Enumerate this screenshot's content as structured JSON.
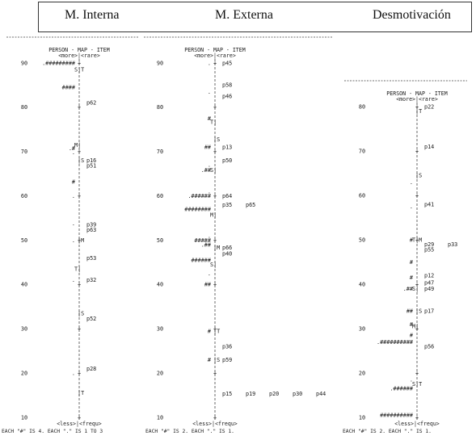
{
  "headers": [
    "M. Interna",
    "M. Externa",
    "Desmotivación"
  ],
  "chart_data": [
    {
      "type": "scatter",
      "title": "M. Interna",
      "map_title": "PERSON - MAP - ITEM",
      "top_label": "<more>|<rare>",
      "bottom_label": "<less>|<frequ>",
      "footer": "EACH \"#\" IS 4. EACH \".\" IS 1 TO 3",
      "ylim": [
        10,
        90
      ],
      "ticks": [
        90,
        80,
        70,
        60,
        50,
        40,
        30,
        20,
        10
      ],
      "axis_markers": [
        {
          "y": 88.5,
          "text": "S|T"
        },
        {
          "y": 71.5,
          "text": "M|"
        },
        {
          "y": 68.0,
          "text": "|S"
        },
        {
          "y": 50.0,
          "text": "|M"
        },
        {
          "y": 43.5,
          "text": "T|"
        },
        {
          "y": 33.5,
          "text": "|S"
        },
        {
          "y": 15.5,
          "text": "|T"
        }
      ],
      "items": [
        {
          "y": 81.0,
          "labels": [
            "p62"
          ]
        },
        {
          "y": 68.0,
          "labels": [
            "p16"
          ]
        },
        {
          "y": 66.8,
          "labels": [
            "p51"
          ]
        },
        {
          "y": 53.5,
          "labels": [
            "p39"
          ]
        },
        {
          "y": 52.3,
          "labels": [
            "p63"
          ]
        },
        {
          "y": 46.0,
          "labels": [
            "p53"
          ]
        },
        {
          "y": 41.0,
          "labels": [
            "p32"
          ]
        },
        {
          "y": 32.3,
          "labels": [
            "p52"
          ]
        },
        {
          "y": 21.0,
          "labels": [
            "p28"
          ]
        }
      ],
      "persons": [
        {
          "y": 90.0,
          "text": ".#########"
        },
        {
          "y": 84.5,
          "text": "####"
        },
        {
          "y": 70.7,
          "text": ".#"
        },
        {
          "y": 69.8,
          "text": "."
        },
        {
          "y": 63.2,
          "text": "#"
        },
        {
          "y": 60.0,
          "text": "."
        },
        {
          "y": 53.8,
          "text": "."
        },
        {
          "y": 50.0,
          "text": "."
        },
        {
          "y": 41.0,
          "text": "."
        },
        {
          "y": 20.0,
          "text": "."
        }
      ]
    },
    {
      "type": "scatter",
      "title": "M. Externa",
      "map_title": "PERSON - MAP - ITEM",
      "top_label": "<more>|<rare>",
      "bottom_label": "<less>|<frequ>",
      "footer": "EACH \"#\" IS 2. EACH \".\" IS 1.",
      "ylim": [
        10,
        90
      ],
      "ticks": [
        90,
        80,
        70,
        60,
        50,
        40,
        30,
        20,
        10
      ],
      "axis_markers": [
        {
          "y": 76.7,
          "text": "T|"
        },
        {
          "y": 72.7,
          "text": "|S"
        },
        {
          "y": 65.8,
          "text": "S|"
        },
        {
          "y": 55.7,
          "text": "M|"
        },
        {
          "y": 48.3,
          "text": "|M"
        },
        {
          "y": 44.5,
          "text": "S|"
        },
        {
          "y": 29.5,
          "text": "|T"
        },
        {
          "y": 23.0,
          "text": "|S"
        }
      ],
      "items": [
        {
          "y": 90.0,
          "labels": [
            "p45"
          ]
        },
        {
          "y": 85.0,
          "labels": [
            "p58"
          ]
        },
        {
          "y": 82.5,
          "labels": [
            "p46"
          ]
        },
        {
          "y": 71.0,
          "labels": [
            "p13"
          ]
        },
        {
          "y": 68.0,
          "labels": [
            "p50"
          ]
        },
        {
          "y": 60.0,
          "labels": [
            "p64"
          ]
        },
        {
          "y": 58.0,
          "labels": [
            "p35",
            "p65"
          ]
        },
        {
          "y": 48.3,
          "labels": [
            "p66"
          ]
        },
        {
          "y": 47.0,
          "labels": [
            "p40"
          ]
        },
        {
          "y": 26.0,
          "labels": [
            "p36"
          ]
        },
        {
          "y": 23.0,
          "labels": [
            "p59"
          ]
        },
        {
          "y": 15.3,
          "labels": [
            "p15",
            "p19",
            "p20",
            "p30",
            "p44"
          ]
        }
      ],
      "persons": [
        {
          "y": 90.0,
          "text": "."
        },
        {
          "y": 83.5,
          "text": "."
        },
        {
          "y": 77.5,
          "text": "#"
        },
        {
          "y": 71.0,
          "text": "##"
        },
        {
          "y": 67.0,
          "text": "."
        },
        {
          "y": 65.8,
          "text": ".##"
        },
        {
          "y": 61.0,
          "text": "."
        },
        {
          "y": 60.0,
          "text": ".######"
        },
        {
          "y": 57.0,
          "text": "########"
        },
        {
          "y": 51.0,
          "text": "."
        },
        {
          "y": 50.0,
          "text": "#####"
        },
        {
          "y": 49.0,
          "text": ".##"
        },
        {
          "y": 46.0,
          "text": "."
        },
        {
          "y": 45.5,
          "text": "######"
        },
        {
          "y": 42.5,
          "text": "."
        },
        {
          "y": 40.0,
          "text": "##"
        },
        {
          "y": 29.5,
          "text": "#"
        },
        {
          "y": 23.0,
          "text": "#"
        }
      ]
    },
    {
      "type": "scatter",
      "title": "Desmotivación",
      "map_title": "PERSON - MAP - ITEM",
      "top_label": "<more>|<rare>",
      "bottom_label": "<less>|<frequ>",
      "footer": "EACH \"#\" IS 2. EACH \".\" IS 1.",
      "ylim": [
        10,
        80
      ],
      "ticks": [
        80,
        70,
        60,
        50,
        40,
        30,
        20,
        10
      ],
      "axis_markers": [
        {
          "y": 79.0,
          "text": "|T"
        },
        {
          "y": 64.5,
          "text": "|S"
        },
        {
          "y": 50.0,
          "text": "T|M"
        },
        {
          "y": 39.0,
          "text": "S|"
        },
        {
          "y": 34.0,
          "text": "|S"
        },
        {
          "y": 30.5,
          "text": "M|"
        },
        {
          "y": 17.5,
          "text": "S|T"
        }
      ],
      "items": [
        {
          "y": 80.0,
          "labels": [
            "p22"
          ]
        },
        {
          "y": 71.0,
          "labels": [
            "p14"
          ]
        },
        {
          "y": 58.0,
          "labels": [
            "p41"
          ]
        },
        {
          "y": 49.0,
          "labels": [
            "p29",
            "p33"
          ]
        },
        {
          "y": 47.8,
          "labels": [
            "p55"
          ]
        },
        {
          "y": 42.0,
          "labels": [
            "p12"
          ]
        },
        {
          "y": 40.3,
          "labels": [
            "p47"
          ]
        },
        {
          "y": 39.0,
          "labels": [
            "p49"
          ]
        },
        {
          "y": 34.0,
          "labels": [
            "p17"
          ]
        },
        {
          "y": 26.0,
          "labels": [
            "p56"
          ]
        }
      ],
      "persons": [
        {
          "y": 63.0,
          "text": "."
        },
        {
          "y": 57.5,
          "text": "."
        },
        {
          "y": 50.0,
          "text": "#"
        },
        {
          "y": 45.0,
          "text": "#"
        },
        {
          "y": 41.5,
          "text": "#"
        },
        {
          "y": 39.0,
          "text": ".##"
        },
        {
          "y": 34.0,
          "text": "##"
        },
        {
          "y": 31.0,
          "text": "#"
        },
        {
          "y": 28.5,
          "text": "#"
        },
        {
          "y": 27.0,
          "text": ".##########"
        },
        {
          "y": 18.5,
          "text": "."
        },
        {
          "y": 16.5,
          "text": ".######"
        },
        {
          "y": 10.5,
          "text": "##########"
        }
      ]
    }
  ]
}
